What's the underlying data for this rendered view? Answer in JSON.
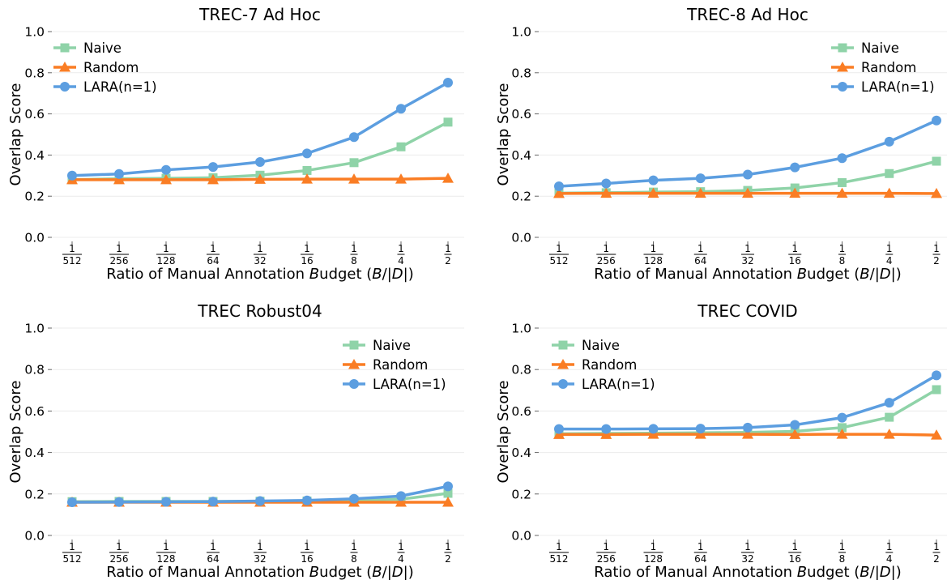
{
  "chart_data": [
    {
      "type": "line",
      "title": "TREC-7 Ad Hoc",
      "xlabel": "Ratio of Manual Annotation Budget (B/|D|)",
      "ylabel": "Overlap Score",
      "categories": [
        "1/512",
        "1/256",
        "1/128",
        "1/64",
        "1/32",
        "1/16",
        "1/8",
        "1/4",
        "1/2"
      ],
      "ylim": [
        0,
        1
      ],
      "yticks": [
        "0.0",
        "0.2",
        "0.4",
        "0.6",
        "0.8",
        "1.0"
      ],
      "grid": true,
      "legend": "top-left",
      "series": [
        {
          "name": "Naive",
          "values": [
            0.28,
            0.285,
            0.287,
            0.29,
            0.302,
            0.325,
            0.363,
            0.44,
            0.56
          ]
        },
        {
          "name": "Random",
          "values": [
            0.28,
            0.28,
            0.28,
            0.28,
            0.282,
            0.283,
            0.283,
            0.283,
            0.287
          ]
        },
        {
          "name": "LARA(n=1)",
          "values": [
            0.3,
            0.308,
            0.328,
            0.342,
            0.366,
            0.408,
            0.487,
            0.625,
            0.752
          ]
        }
      ]
    },
    {
      "type": "line",
      "title": "TREC-8 Ad Hoc",
      "xlabel": "Ratio of Manual Annotation Budget (B/|D|)",
      "ylabel": "Overlap Score",
      "categories": [
        "1/512",
        "1/256",
        "1/128",
        "1/64",
        "1/32",
        "1/16",
        "1/8",
        "1/4",
        "1/2"
      ],
      "ylim": [
        0,
        1
      ],
      "yticks": [
        "0.0",
        "0.2",
        "0.4",
        "0.6",
        "0.8",
        "1.0"
      ],
      "grid": true,
      "legend": "top-right",
      "series": [
        {
          "name": "Naive",
          "values": [
            0.215,
            0.217,
            0.22,
            0.222,
            0.228,
            0.24,
            0.266,
            0.31,
            0.37
          ]
        },
        {
          "name": "Random",
          "values": [
            0.213,
            0.214,
            0.214,
            0.214,
            0.214,
            0.214,
            0.214,
            0.214,
            0.213
          ]
        },
        {
          "name": "LARA(n=1)",
          "values": [
            0.248,
            0.262,
            0.277,
            0.287,
            0.305,
            0.34,
            0.385,
            0.465,
            0.568
          ]
        }
      ]
    },
    {
      "type": "line",
      "title": "TREC Robust04",
      "xlabel": "Ratio of Manual Annotation Budget (B/|D|)",
      "ylabel": "Overlap Score",
      "categories": [
        "1/512",
        "1/256",
        "1/128",
        "1/64",
        "1/32",
        "1/16",
        "1/8",
        "1/4",
        "1/2"
      ],
      "ylim": [
        0,
        1
      ],
      "yticks": [
        "0.0",
        "0.2",
        "0.4",
        "0.6",
        "0.8",
        "1.0"
      ],
      "grid": true,
      "legend": "top-right",
      "series": [
        {
          "name": "Naive",
          "values": [
            0.163,
            0.164,
            0.164,
            0.164,
            0.165,
            0.166,
            0.17,
            0.175,
            0.203
          ]
        },
        {
          "name": "Random",
          "values": [
            0.16,
            0.16,
            0.16,
            0.16,
            0.16,
            0.16,
            0.16,
            0.16,
            0.16
          ]
        },
        {
          "name": "LARA(n=1)",
          "values": [
            0.16,
            0.161,
            0.162,
            0.163,
            0.166,
            0.169,
            0.177,
            0.19,
            0.237
          ]
        }
      ]
    },
    {
      "type": "line",
      "title": "TREC COVID",
      "xlabel": "Ratio of Manual Annotation Budget (B/|D|)",
      "ylabel": "Overlap Score",
      "categories": [
        "1/512",
        "1/256",
        "1/128",
        "1/64",
        "1/32",
        "1/16",
        "1/8",
        "1/4",
        "1/2"
      ],
      "ylim": [
        0,
        1
      ],
      "yticks": [
        "0.0",
        "0.2",
        "0.4",
        "0.6",
        "0.8",
        "1.0"
      ],
      "grid": true,
      "legend": "top-left",
      "series": [
        {
          "name": "Naive",
          "values": [
            0.49,
            0.492,
            0.493,
            0.495,
            0.497,
            0.502,
            0.52,
            0.57,
            0.703
          ]
        },
        {
          "name": "Random",
          "values": [
            0.487,
            0.487,
            0.488,
            0.488,
            0.488,
            0.487,
            0.488,
            0.488,
            0.484
          ]
        },
        {
          "name": "LARA(n=1)",
          "values": [
            0.513,
            0.513,
            0.514,
            0.515,
            0.52,
            0.533,
            0.568,
            0.64,
            0.772
          ]
        }
      ]
    }
  ],
  "colors": {
    "Naive": "#8fd3a8",
    "Random": "#fa7d24",
    "LARA(n=1)": "#5c9ee0",
    "grid": "#ececec"
  },
  "markers": {
    "Naive": "square",
    "Random": "triangle",
    "LARA(n=1)": "circle"
  }
}
